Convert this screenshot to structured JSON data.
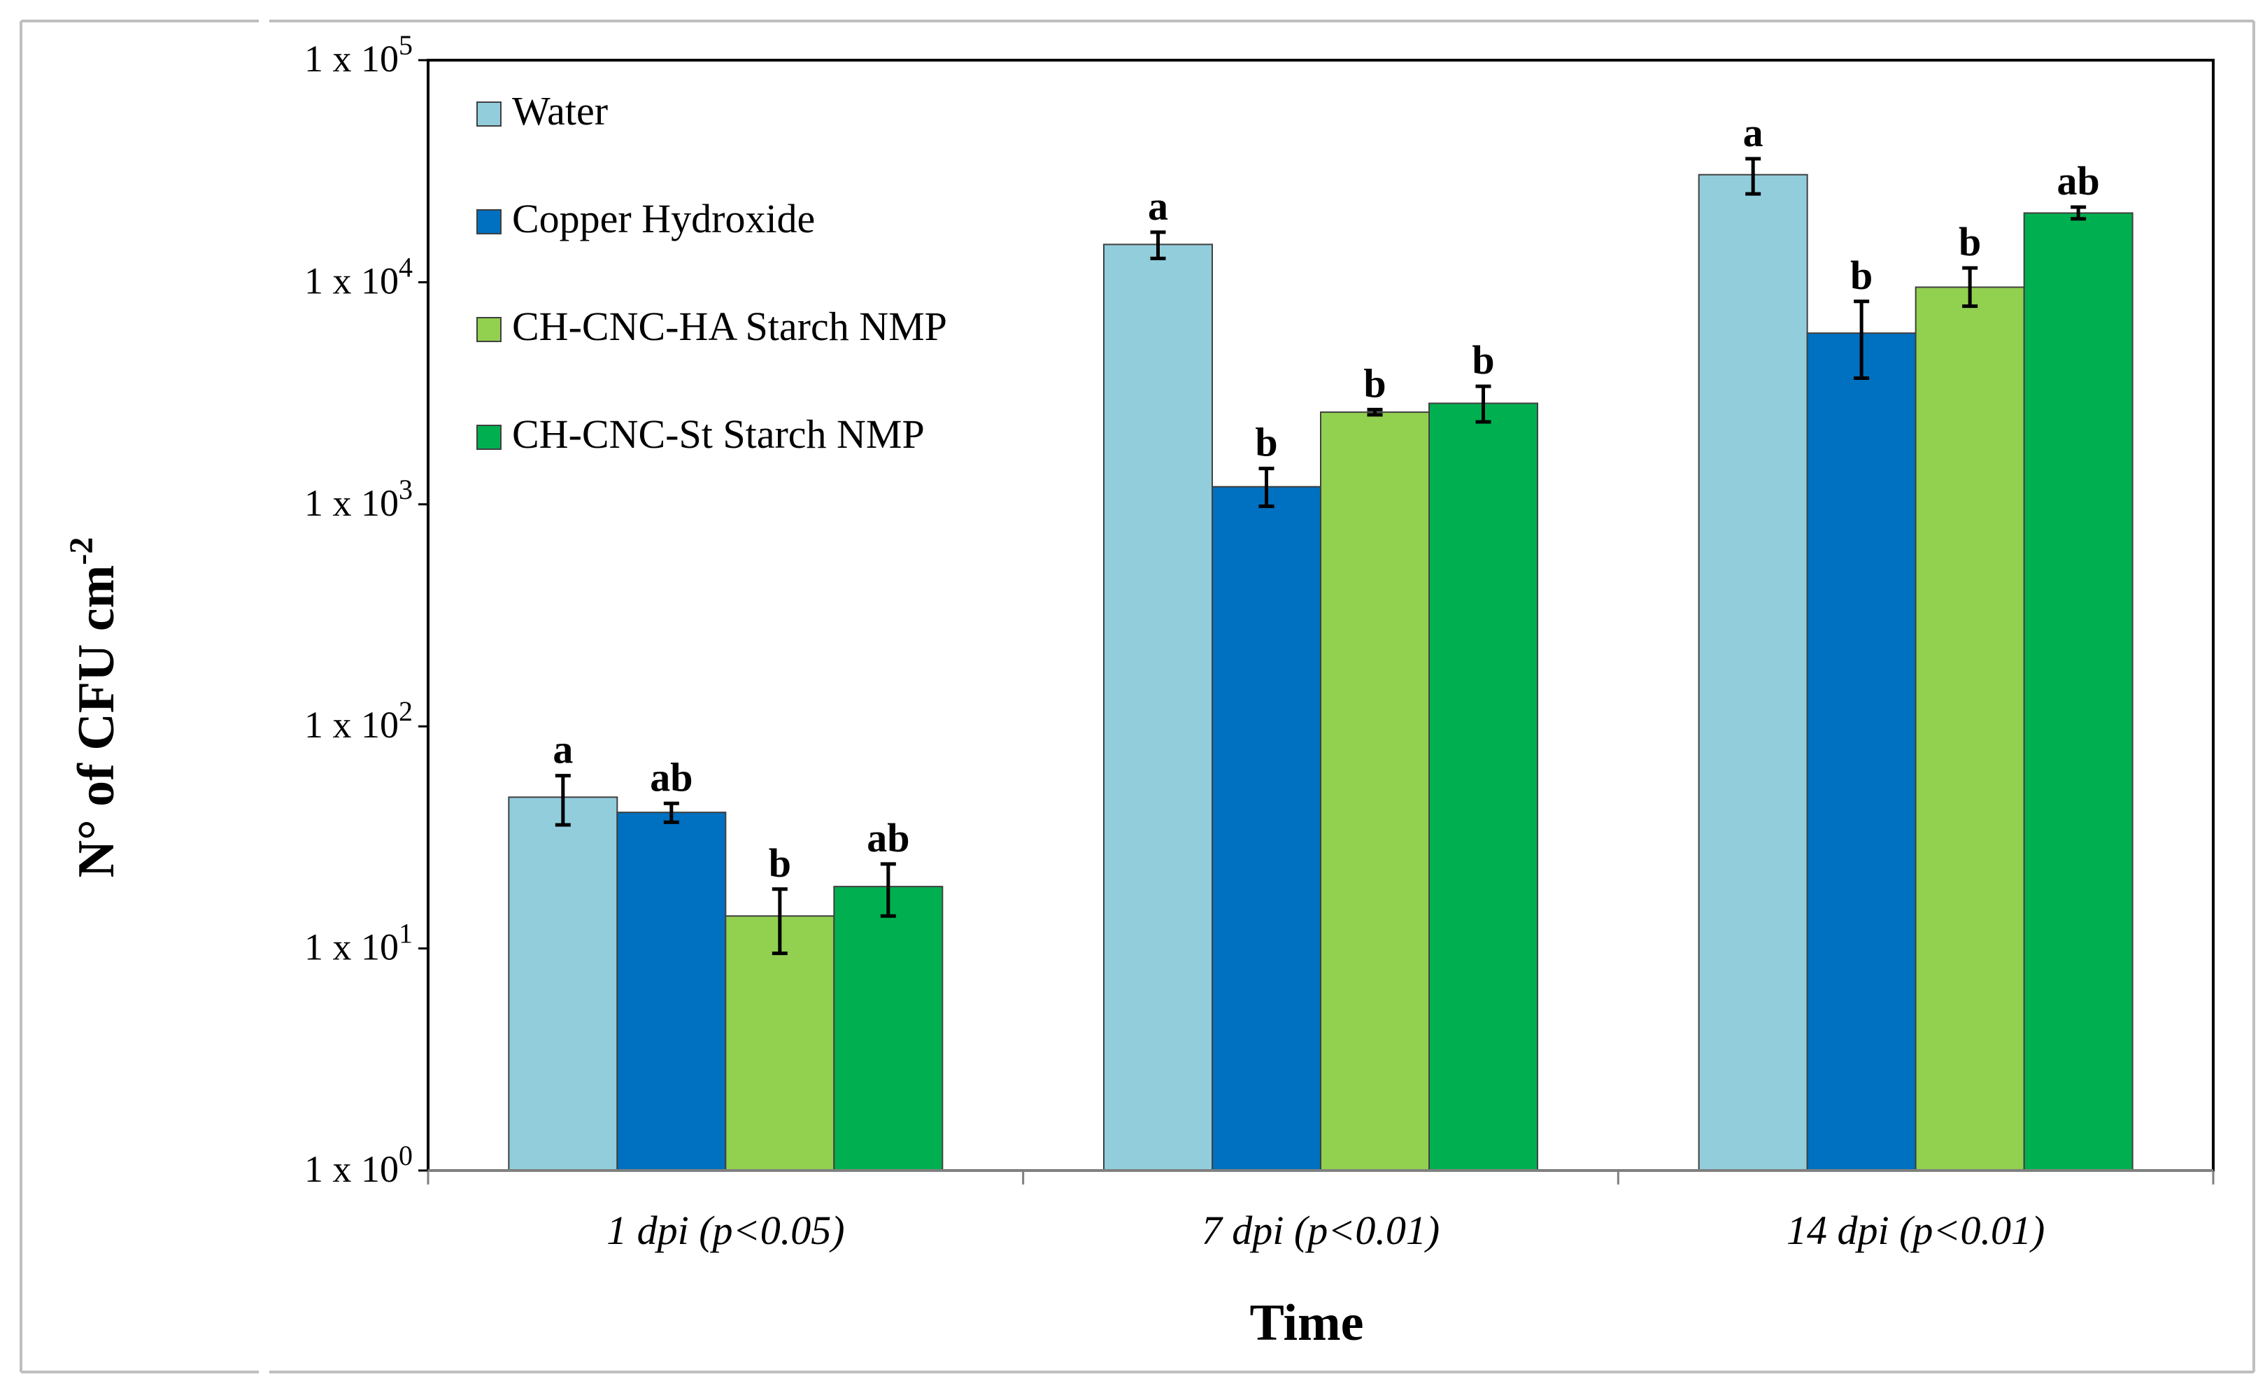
{
  "chart_data": {
    "type": "bar",
    "scale": "log",
    "title": "",
    "xlabel": "Time",
    "ylabel": {
      "base": "N° of CFU cm",
      "exponent": "-2"
    },
    "ylim": [
      1,
      100000
    ],
    "yticks": [
      {
        "value": 1,
        "base": "1 x 10",
        "exponent": "0"
      },
      {
        "value": 10,
        "base": "1 x 10",
        "exponent": "1"
      },
      {
        "value": 100,
        "base": "1 x 10",
        "exponent": "2"
      },
      {
        "value": 1000,
        "base": "1 x 10",
        "exponent": "3"
      },
      {
        "value": 10000,
        "base": "1 x 10",
        "exponent": "4"
      },
      {
        "value": 100000,
        "base": "1 x 10",
        "exponent": "5"
      }
    ],
    "categories": [
      "1 dpi (p<0.05)",
      "7 dpi (p<0.01)",
      "14 dpi (p<0.01)"
    ],
    "legend_position": "top-left",
    "series": [
      {
        "name": "Water",
        "color": "#92CDDC",
        "values": [
          48,
          14800,
          30500
        ],
        "err_low": [
          36,
          12800,
          25000
        ],
        "err_high": [
          60,
          16800,
          36000
        ],
        "letters": [
          "a",
          "a",
          "a"
        ]
      },
      {
        "name": "Copper Hydroxide",
        "color": "#0070C0",
        "values": [
          41,
          1200,
          5900
        ],
        "err_low": [
          37,
          980,
          3700
        ],
        "err_high": [
          45,
          1450,
          8200
        ],
        "letters": [
          "ab",
          "b",
          "b"
        ]
      },
      {
        "name": "CH-CNC-HA Starch NMP",
        "color": "#92D050",
        "values": [
          14,
          2600,
          9500
        ],
        "err_low": [
          9.5,
          2530,
          7800
        ],
        "err_high": [
          18.5,
          2670,
          11600
        ],
        "letters": [
          "b",
          "b",
          "b"
        ]
      },
      {
        "name": "CH-CNC-St Starch NMP",
        "color": "#00B050",
        "values": [
          19,
          2850,
          20500
        ],
        "err_low": [
          14,
          2350,
          19300
        ],
        "err_high": [
          24,
          3400,
          21800
        ],
        "letters": [
          "ab",
          "b",
          "ab"
        ]
      }
    ]
  }
}
